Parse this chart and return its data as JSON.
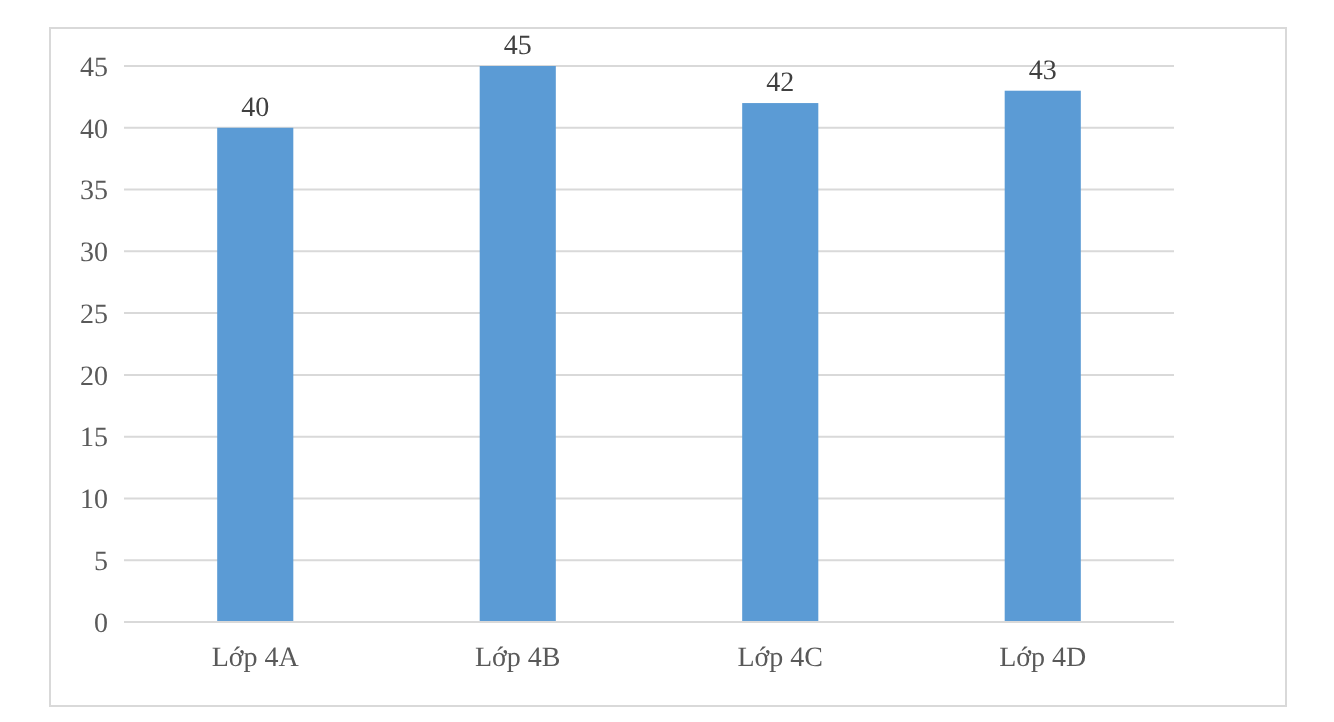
{
  "chart_data": {
    "type": "bar",
    "categories": [
      "Lớp 4A",
      "Lớp 4B",
      "Lớp 4C",
      "Lớp 4D"
    ],
    "values": [
      40,
      45,
      42,
      43
    ],
    "color": "#5b9bd5",
    "ylim": [
      0,
      45
    ],
    "yticks": [
      0,
      5,
      10,
      15,
      20,
      25,
      30,
      35,
      40,
      45
    ],
    "grid": "y",
    "data_labels": true
  }
}
